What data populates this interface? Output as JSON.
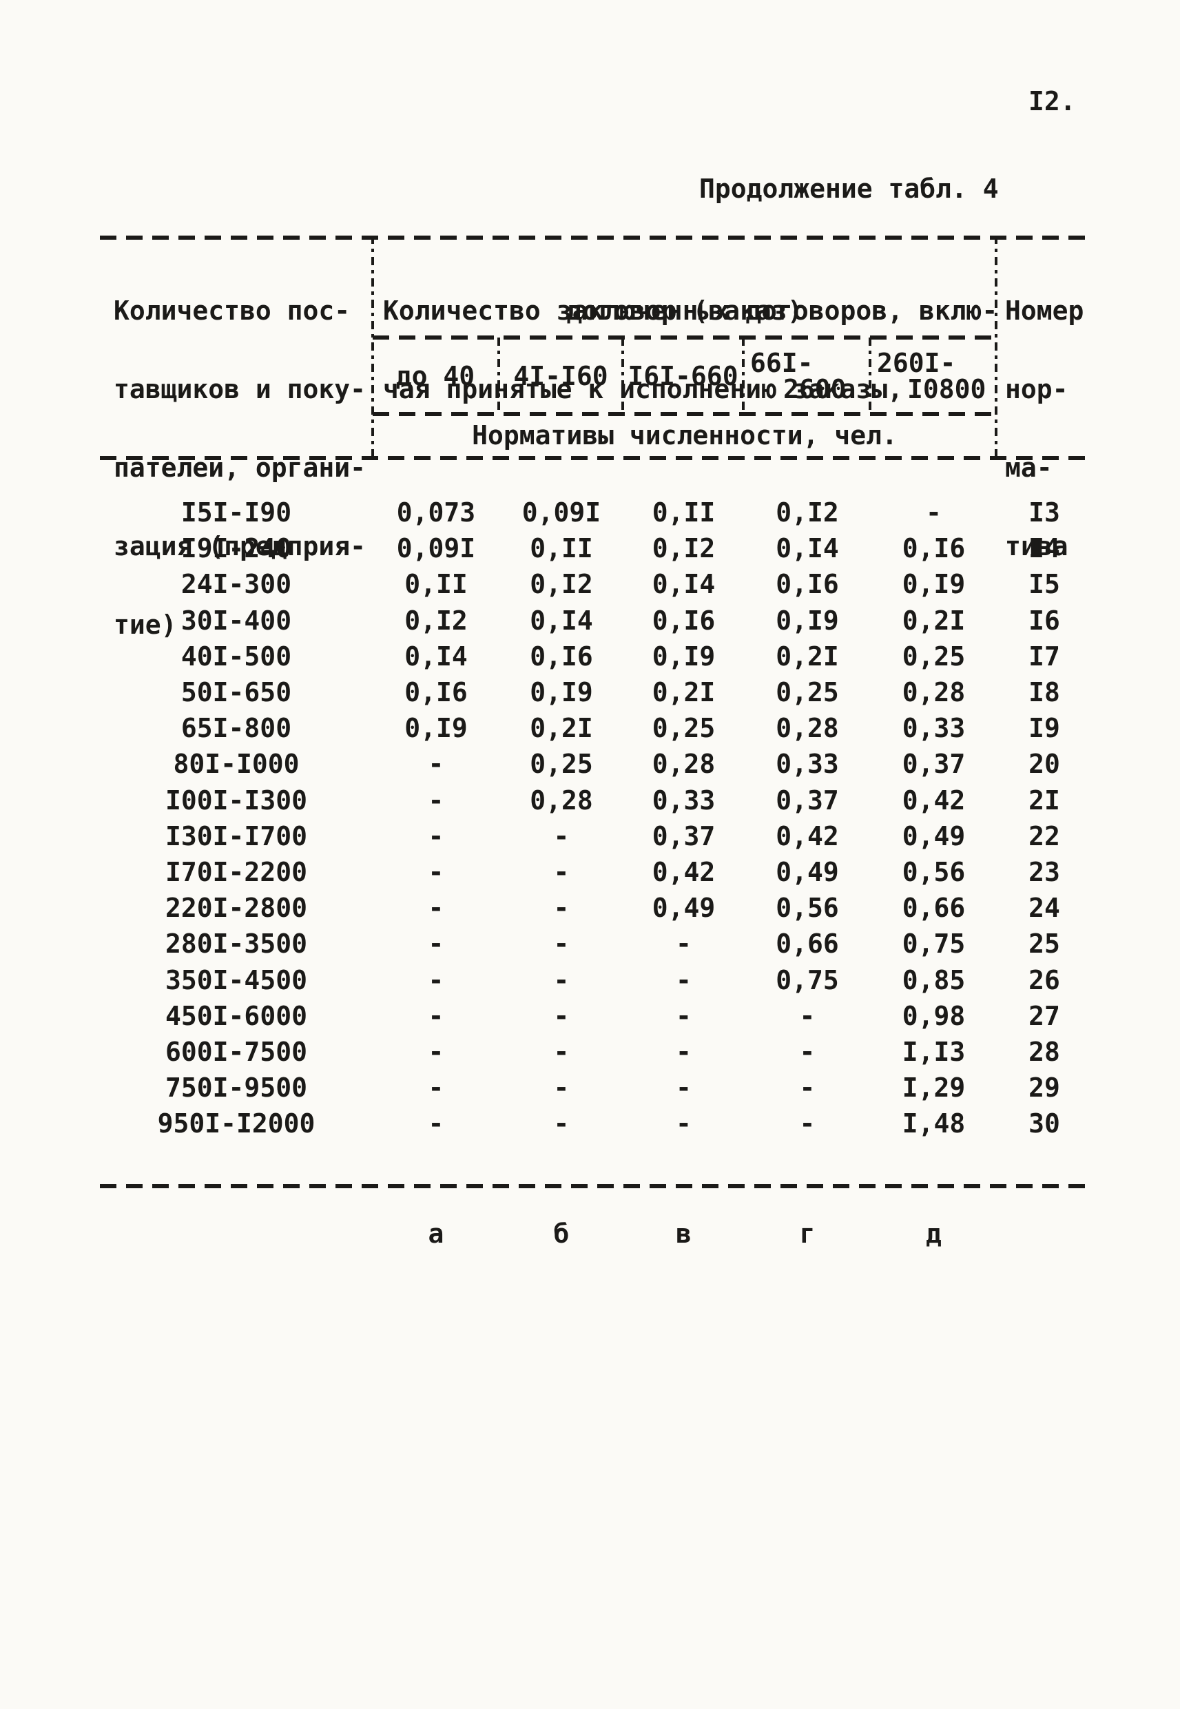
{
  "page": {
    "number": "I2.",
    "caption": "Продолжение табл. 4"
  },
  "table": {
    "col1_header_lines": [
      "Количество пос-",
      "тавщиков и поку-",
      "пателей, органи-",
      "зация (предприя-",
      "тие)"
    ],
    "group_header_lines": [
      "Количество заключенных договоров, вклю-",
      "чая принятые к исполнению заказы,",
      "договор (заказ)"
    ],
    "number_header_lines": [
      "Номер",
      "нор-",
      "ма-",
      "тива"
    ],
    "subcols": [
      [
        "до 40"
      ],
      [
        "4I-I60"
      ],
      [
        "I6I-660"
      ],
      [
        "66I-",
        "2600"
      ],
      [
        "260I-",
        "I0800"
      ]
    ],
    "units_header": "Нормативы численности, чел.",
    "rows": [
      {
        "range": "I5I-I90",
        "values": [
          "0,073",
          "0,09I",
          "0,II",
          "0,I2",
          "-"
        ],
        "num": "I3"
      },
      {
        "range": "I9I-240",
        "values": [
          "0,09I",
          "0,II",
          "0,I2",
          "0,I4",
          "0,I6"
        ],
        "num": "I4"
      },
      {
        "range": "24I-300",
        "values": [
          "0,II",
          "0,I2",
          "0,I4",
          "0,I6",
          "0,I9"
        ],
        "num": "I5"
      },
      {
        "range": "30I-400",
        "values": [
          "0,I2",
          "0,I4",
          "0,I6",
          "0,I9",
          "0,2I"
        ],
        "num": "I6"
      },
      {
        "range": "40I-500",
        "values": [
          "0,I4",
          "0,I6",
          "0,I9",
          "0,2I",
          "0,25"
        ],
        "num": "I7"
      },
      {
        "range": "50I-650",
        "values": [
          "0,I6",
          "0,I9",
          "0,2I",
          "0,25",
          "0,28"
        ],
        "num": "I8"
      },
      {
        "range": "65I-800",
        "values": [
          "0,I9",
          "0,2I",
          "0,25",
          "0,28",
          "0,33"
        ],
        "num": "I9"
      },
      {
        "range": "80I-I000",
        "values": [
          "-",
          "0,25",
          "0,28",
          "0,33",
          "0,37"
        ],
        "num": "20"
      },
      {
        "range": "I00I-I300",
        "values": [
          "-",
          "0,28",
          "0,33",
          "0,37",
          "0,42"
        ],
        "num": "2I"
      },
      {
        "range": "I30I-I700",
        "values": [
          "-",
          "-",
          "0,37",
          "0,42",
          "0,49"
        ],
        "num": "22"
      },
      {
        "range": "I70I-2200",
        "values": [
          "-",
          "-",
          "0,42",
          "0,49",
          "0,56"
        ],
        "num": "23"
      },
      {
        "range": "220I-2800",
        "values": [
          "-",
          "-",
          "0,49",
          "0,56",
          "0,66"
        ],
        "num": "24"
      },
      {
        "range": "280I-3500",
        "values": [
          "-",
          "-",
          "-",
          "0,66",
          "0,75"
        ],
        "num": "25"
      },
      {
        "range": "350I-4500",
        "values": [
          "-",
          "-",
          "-",
          "0,75",
          "0,85"
        ],
        "num": "26"
      },
      {
        "range": "450I-6000",
        "values": [
          "-",
          "-",
          "-",
          "-",
          "0,98"
        ],
        "num": "27"
      },
      {
        "range": "600I-7500",
        "values": [
          "-",
          "-",
          "-",
          "-",
          "I,I3"
        ],
        "num": "28"
      },
      {
        "range": "750I-9500",
        "values": [
          "-",
          "-",
          "-",
          "-",
          "I,29"
        ],
        "num": "29"
      },
      {
        "range": "950I-I2000",
        "values": [
          "-",
          "-",
          "-",
          "-",
          "I,48"
        ],
        "num": "30"
      }
    ],
    "footer_letters": [
      "а",
      "б",
      "в",
      "г",
      "д"
    ]
  }
}
